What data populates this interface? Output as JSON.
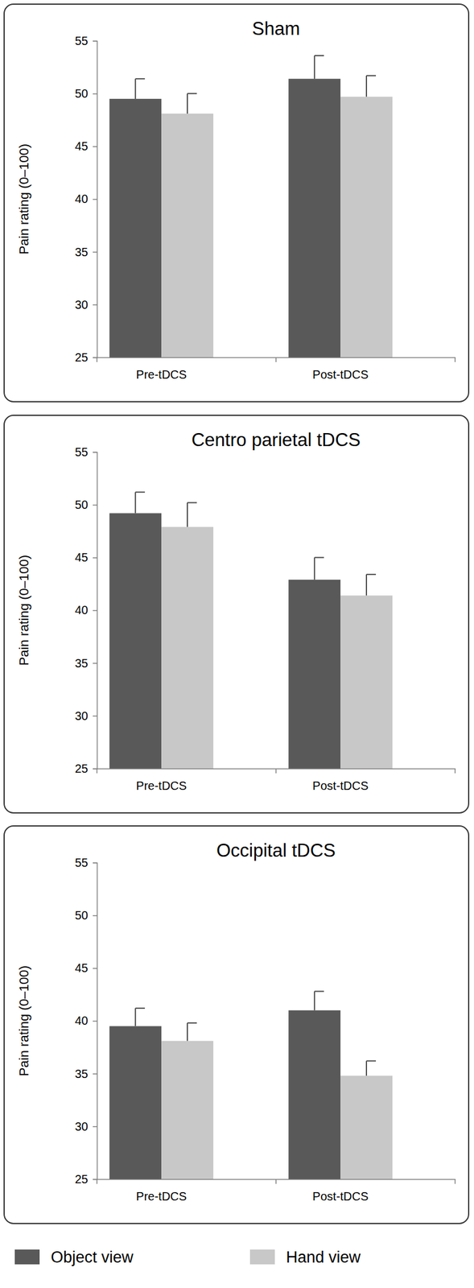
{
  "chart_data": [
    {
      "type": "bar",
      "title": "Sham",
      "y_label": "Pain rating (0–100)",
      "categories": [
        "Pre-tDCS",
        "Post-tDCS"
      ],
      "series": [
        {
          "name": "Object view",
          "color": "#595959",
          "values": [
            49.5,
            51.4
          ],
          "errors": [
            1.9,
            2.2
          ]
        },
        {
          "name": "Hand view",
          "color": "#c8c8c8",
          "values": [
            48.1,
            49.7
          ],
          "errors": [
            1.9,
            2.0
          ]
        }
      ],
      "ylim": [
        25,
        55
      ],
      "yticks": [
        25,
        30,
        35,
        40,
        45,
        50,
        55
      ],
      "grid": false
    },
    {
      "type": "bar",
      "title": "Centro parietal tDCS",
      "y_label": "Pain rating (0–100)",
      "categories": [
        "Pre-tDCS",
        "Post-tDCS"
      ],
      "series": [
        {
          "name": "Object view",
          "color": "#595959",
          "values": [
            49.2,
            42.9
          ],
          "errors": [
            2.0,
            2.1
          ]
        },
        {
          "name": "Hand view",
          "color": "#c8c8c8",
          "values": [
            47.9,
            41.4
          ],
          "errors": [
            2.3,
            2.0
          ]
        }
      ],
      "ylim": [
        25,
        55
      ],
      "yticks": [
        25,
        30,
        35,
        40,
        45,
        50,
        55
      ],
      "grid": false
    },
    {
      "type": "bar",
      "title": "Occipital tDCS",
      "y_label": "Pain rating (0–100)",
      "categories": [
        "Pre-tDCS",
        "Post-tDCS"
      ],
      "series": [
        {
          "name": "Object view",
          "color": "#595959",
          "values": [
            39.5,
            41.0
          ],
          "errors": [
            1.7,
            1.8
          ]
        },
        {
          "name": "Hand view",
          "color": "#c8c8c8",
          "values": [
            38.1,
            34.8
          ],
          "errors": [
            1.7,
            1.4
          ]
        }
      ],
      "ylim": [
        25,
        55
      ],
      "yticks": [
        25,
        30,
        35,
        40,
        45,
        50,
        55
      ],
      "grid": false,
      "legend": "bottom"
    }
  ]
}
